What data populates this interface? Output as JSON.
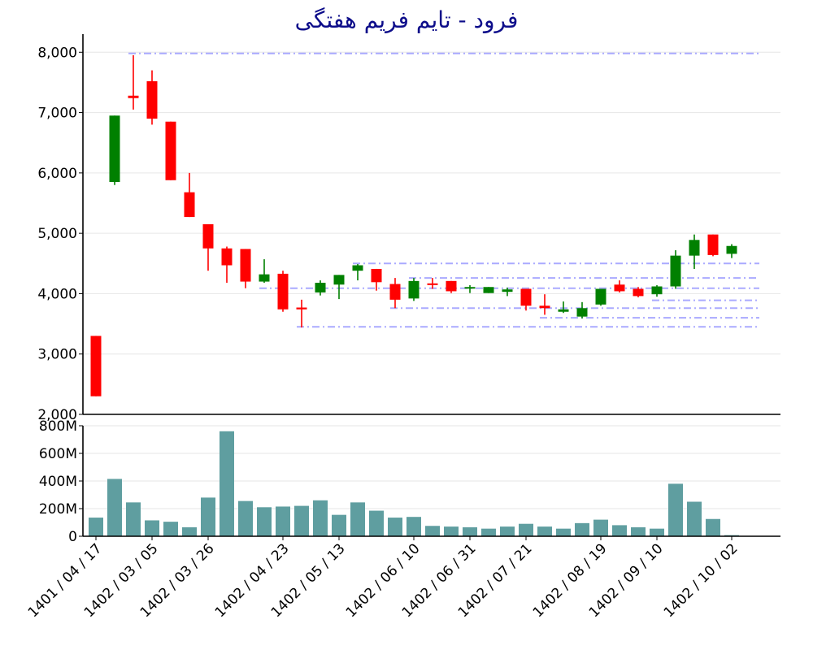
{
  "chart_data": {
    "type": "candlestick",
    "title": "فرود - تایم فریم هفتگی",
    "colors": {
      "up": "#008000",
      "down": "#ff0000",
      "volume": "#5f9ea0",
      "levels": "#aaaaff",
      "title": "#0d0d8a",
      "grid": "#e6e6e6"
    },
    "price_axis": {
      "ylim": [
        2000,
        8300
      ],
      "ticks": [
        2000,
        3000,
        4000,
        5000,
        6000,
        7000,
        8000
      ],
      "tick_labels": [
        "2,000",
        "3,000",
        "4,000",
        "5,000",
        "6,000",
        "7,000",
        "8,000"
      ]
    },
    "volume_axis": {
      "ylim": [
        0,
        800000000
      ],
      "ticks": [
        0,
        200000000,
        400000000,
        600000000,
        800000000
      ],
      "tick_labels": [
        "0",
        "200M",
        "400M",
        "600M",
        "800M"
      ]
    },
    "x_tick_labels": [
      {
        "index": 0,
        "label": "1401 / 04 / 17"
      },
      {
        "index": 3,
        "label": "1402 / 03 / 05"
      },
      {
        "index": 6,
        "label": "1402 / 03 / 26"
      },
      {
        "index": 10,
        "label": "1402 / 04 / 23"
      },
      {
        "index": 13,
        "label": "1402 / 05 / 13"
      },
      {
        "index": 17,
        "label": "1402 / 06 / 10"
      },
      {
        "index": 20,
        "label": "1402 / 06 / 31"
      },
      {
        "index": 23,
        "label": "1402 / 07 / 21"
      },
      {
        "index": 27,
        "label": "1402 / 08 / 19"
      },
      {
        "index": 30,
        "label": "1402 / 09 / 10"
      },
      {
        "index": 34,
        "label": "1402 / 10 / 02"
      }
    ],
    "candles": [
      {
        "o": 3300,
        "h": 3300,
        "l": 2300,
        "c": 2300,
        "v": 135000000
      },
      {
        "o": 5850,
        "h": 6950,
        "l": 5800,
        "c": 6950,
        "v": 415000000
      },
      {
        "o": 7280,
        "h": 7950,
        "l": 7050,
        "c": 7240,
        "v": 245000000
      },
      {
        "o": 7520,
        "h": 7700,
        "l": 6800,
        "c": 6900,
        "v": 115000000
      },
      {
        "o": 6850,
        "h": 6850,
        "l": 5880,
        "c": 5880,
        "v": 105000000
      },
      {
        "o": 5680,
        "h": 6000,
        "l": 5270,
        "c": 5270,
        "v": 65000000
      },
      {
        "o": 5150,
        "h": 5150,
        "l": 4380,
        "c": 4750,
        "v": 280000000
      },
      {
        "o": 4750,
        "h": 4780,
        "l": 4180,
        "c": 4470,
        "v": 760000000
      },
      {
        "o": 4740,
        "h": 4740,
        "l": 4090,
        "c": 4200,
        "v": 255000000
      },
      {
        "o": 4200,
        "h": 4570,
        "l": 4180,
        "c": 4320,
        "v": 210000000
      },
      {
        "o": 4330,
        "h": 4380,
        "l": 3700,
        "c": 3740,
        "v": 215000000
      },
      {
        "o": 3770,
        "h": 3900,
        "l": 3440,
        "c": 3740,
        "v": 220000000
      },
      {
        "o": 4020,
        "h": 4220,
        "l": 3970,
        "c": 4180,
        "v": 260000000
      },
      {
        "o": 4150,
        "h": 4310,
        "l": 3910,
        "c": 4310,
        "v": 155000000
      },
      {
        "o": 4380,
        "h": 4490,
        "l": 4220,
        "c": 4470,
        "v": 245000000
      },
      {
        "o": 4410,
        "h": 4410,
        "l": 4050,
        "c": 4190,
        "v": 185000000
      },
      {
        "o": 4160,
        "h": 4260,
        "l": 3760,
        "c": 3900,
        "v": 135000000
      },
      {
        "o": 3920,
        "h": 4260,
        "l": 3880,
        "c": 4210,
        "v": 140000000
      },
      {
        "o": 4170,
        "h": 4260,
        "l": 4080,
        "c": 4150,
        "v": 75000000
      },
      {
        "o": 4210,
        "h": 4210,
        "l": 4010,
        "c": 4040,
        "v": 70000000
      },
      {
        "o": 4090,
        "h": 4140,
        "l": 4010,
        "c": 4110,
        "v": 65000000
      },
      {
        "o": 4010,
        "h": 4110,
        "l": 4010,
        "c": 4110,
        "v": 55000000
      },
      {
        "o": 4030,
        "h": 4100,
        "l": 3960,
        "c": 4070,
        "v": 70000000
      },
      {
        "o": 4080,
        "h": 4080,
        "l": 3720,
        "c": 3800,
        "v": 90000000
      },
      {
        "o": 3800,
        "h": 3990,
        "l": 3650,
        "c": 3760,
        "v": 70000000
      },
      {
        "o": 3700,
        "h": 3870,
        "l": 3680,
        "c": 3740,
        "v": 55000000
      },
      {
        "o": 3620,
        "h": 3860,
        "l": 3590,
        "c": 3760,
        "v": 95000000
      },
      {
        "o": 3820,
        "h": 4080,
        "l": 3800,
        "c": 4080,
        "v": 120000000
      },
      {
        "o": 4150,
        "h": 4220,
        "l": 4020,
        "c": 4040,
        "v": 80000000
      },
      {
        "o": 4080,
        "h": 4110,
        "l": 3940,
        "c": 3960,
        "v": 65000000
      },
      {
        "o": 3990,
        "h": 4140,
        "l": 3950,
        "c": 4120,
        "v": 55000000
      },
      {
        "o": 4120,
        "h": 4720,
        "l": 4080,
        "c": 4630,
        "v": 380000000
      },
      {
        "o": 4630,
        "h": 4980,
        "l": 4410,
        "c": 4890,
        "v": 250000000
      },
      {
        "o": 4980,
        "h": 4980,
        "l": 4620,
        "c": 4640,
        "v": 125000000
      },
      {
        "o": 4660,
        "h": 4820,
        "l": 4590,
        "c": 4790,
        "v": 8000000
      }
    ],
    "level_lines": [
      {
        "value": 7980,
        "from_index": 2,
        "to_index": 36,
        "style": "dashdot"
      },
      {
        "value": 4500,
        "from_index": 14,
        "to_index": 36,
        "style": "dashdot"
      },
      {
        "value": 4260,
        "from_index": 17,
        "to_index": 36,
        "style": "dashdot"
      },
      {
        "value": 4090,
        "from_index": 9,
        "to_index": 36,
        "style": "dashdot"
      },
      {
        "value": 3890,
        "from_index": 30,
        "to_index": 36,
        "style": "dashdot"
      },
      {
        "value": 3760,
        "from_index": 16,
        "to_index": 36,
        "style": "dashdot"
      },
      {
        "value": 3600,
        "from_index": 24,
        "to_index": 36,
        "style": "dashdot"
      },
      {
        "value": 3450,
        "from_index": 11,
        "to_index": 36,
        "style": "dashdot"
      }
    ]
  }
}
